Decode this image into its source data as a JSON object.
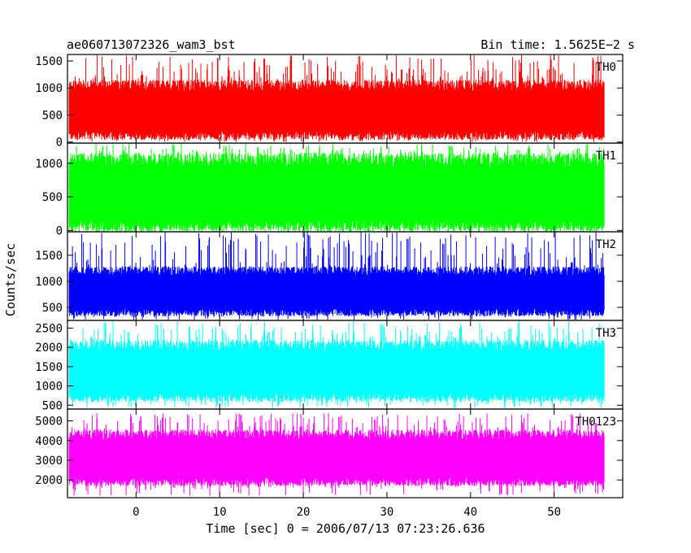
{
  "chart_data": {
    "type": "line",
    "title_left": "ae060713072326_wam3_bst",
    "title_right": "Bin time: 1.5625E−2 s",
    "xlabel": "Time [sec] 0 = 2006/07/13 07:23:26.636",
    "ylabel": "Counts/sec",
    "xlim": [
      -8.2,
      58.2
    ],
    "data_range": [
      -8,
      56
    ],
    "xticks": [
      0,
      10,
      20,
      30,
      40,
      50
    ],
    "xtick_labels": [
      "0",
      "10",
      "20",
      "30",
      "40",
      "50"
    ],
    "grid": false,
    "series": [
      {
        "name": "TH0",
        "color": "#ff0000",
        "ylim": [
          -20,
          1620
        ],
        "yticks": [
          0,
          500,
          1000,
          1500
        ],
        "ytick_labels": [
          "0",
          "500",
          "1000",
          "1500"
        ],
        "base_low": 120,
        "base_high": 1050,
        "spike_low": 0,
        "spike_high": 1620
      },
      {
        "name": "TH1",
        "color": "#00ff00",
        "ylim": [
          -20,
          1300
        ],
        "yticks": [
          0,
          500,
          1000
        ],
        "ytick_labels": [
          "0",
          "500",
          "1000"
        ],
        "base_low": 60,
        "base_high": 1050,
        "spike_low": 0,
        "spike_high": 1300
      },
      {
        "name": "TH2",
        "color": "#0000ff",
        "ylim": [
          250,
          1950
        ],
        "yticks": [
          500,
          1000,
          1500
        ],
        "ytick_labels": [
          "500",
          "1000",
          "1500"
        ],
        "base_low": 400,
        "base_high": 1200,
        "spike_low": 260,
        "spike_high": 1950
      },
      {
        "name": "TH3",
        "color": "#00ffff",
        "ylim": [
          400,
          2700
        ],
        "yticks": [
          500,
          1000,
          1500,
          2000,
          2500
        ],
        "ytick_labels": [
          "500",
          "1000",
          "1500",
          "2000",
          "2500"
        ],
        "base_low": 700,
        "base_high": 2050,
        "spike_low": 420,
        "spike_high": 2700
      },
      {
        "name": "TH0123",
        "color": "#ff00ff",
        "ylim": [
          1100,
          5600
        ],
        "yticks": [
          2000,
          3000,
          4000,
          5000
        ],
        "ytick_labels": [
          "2000",
          "3000",
          "4000",
          "5000"
        ],
        "base_low": 1900,
        "base_high": 4300,
        "spike_low": 1200,
        "spike_high": 5400
      }
    ]
  }
}
